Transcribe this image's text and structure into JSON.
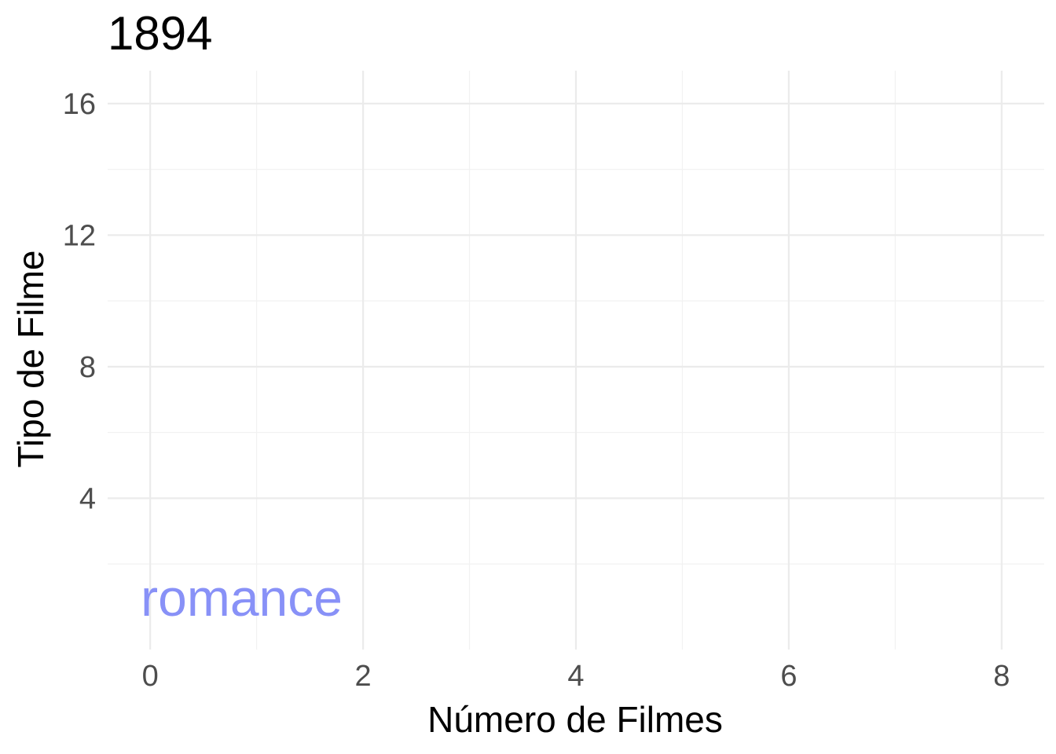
{
  "chart_data": {
    "type": "bar",
    "title": "1894",
    "xlabel": "Número de Filmes",
    "ylabel": "Tipo de Filme",
    "xlim": [
      -0.4,
      8.4
    ],
    "ylim": [
      -0.6,
      17
    ],
    "x_ticks": [
      0,
      2,
      4,
      6,
      8
    ],
    "y_ticks": [
      4,
      8,
      12,
      16
    ],
    "grid": true,
    "legend": "none",
    "bars": [
      {
        "label": "romance",
        "rank": 1,
        "value": 0,
        "color": "#8891f7"
      }
    ]
  }
}
